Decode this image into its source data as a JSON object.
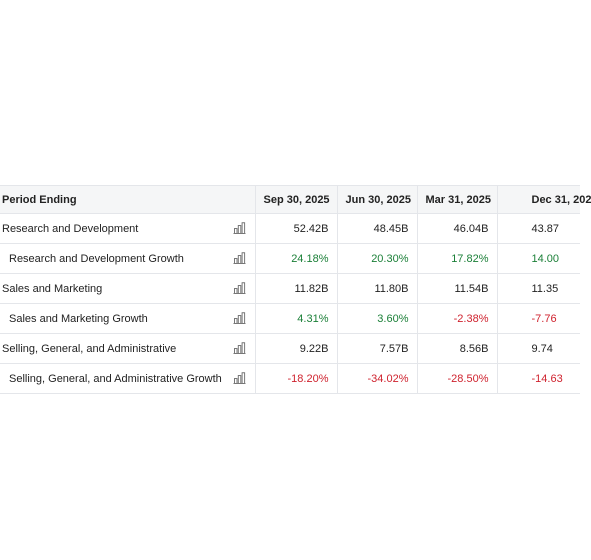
{
  "table": {
    "header": [
      "Period Ending",
      "Sep 30, 2025",
      "Jun 30, 2025",
      "Mar 31, 2025",
      "Dec 31, 202"
    ],
    "rows": [
      [
        "Research and Development",
        "52.42B",
        "48.45B",
        "46.04B",
        "43.87"
      ],
      [
        "Research and Development Growth",
        "24.18%",
        "20.30%",
        "17.82%",
        "14.00"
      ],
      [
        "Sales and Marketing",
        "11.82B",
        "11.80B",
        "11.54B",
        "11.35"
      ],
      [
        "Sales and Marketing Growth",
        "4.31%",
        "3.60%",
        "-2.38%",
        "-7.76"
      ],
      [
        "Selling, General, and Administrative",
        "9.22B",
        "7.57B",
        "8.56B",
        "9.74"
      ],
      [
        "Selling, General, and Administrative Growth",
        "-18.20%",
        "-34.02%",
        "-28.50%",
        "-14.63"
      ]
    ]
  }
}
